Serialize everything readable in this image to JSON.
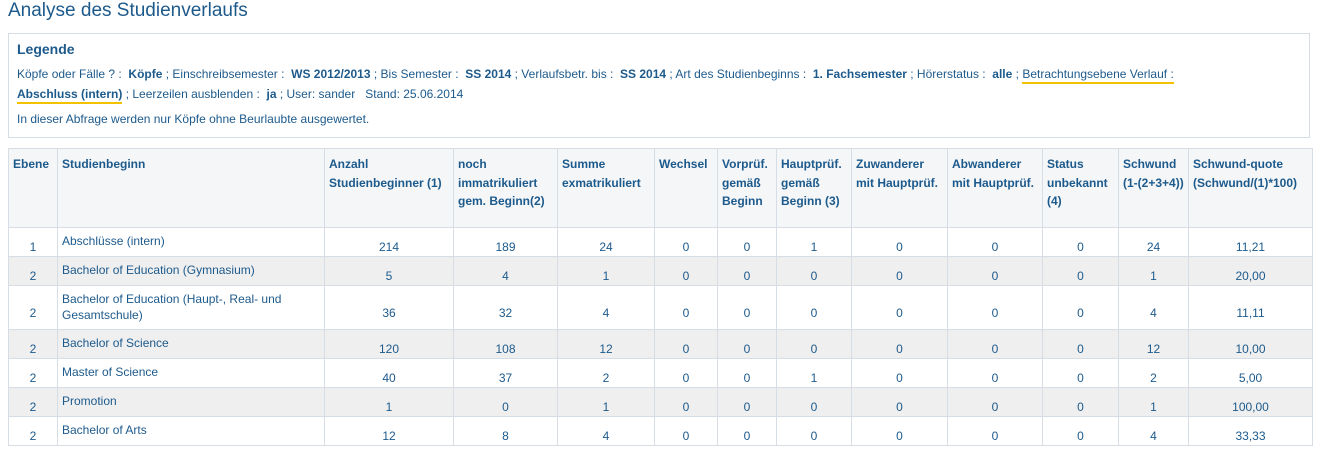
{
  "page": {
    "title": "Analyse des Studienverlaufs"
  },
  "legend": {
    "title": "Legende",
    "line1": {
      "koepfe_label": "Köpfe oder Fälle ? :",
      "koepfe_value": "Köpfe",
      "sem_label": "; Einschreibsemester :",
      "sem_value": "WS 2012/2013",
      "bis_label": "; Bis Semester :",
      "bis_value": "SS 2014",
      "verl_label": "; Verlaufsbetr. bis :",
      "verl_value": "SS 2014",
      "art_label": "; Art des Studienbeginns :",
      "art_value": "1. Fachsemester",
      "hoerer_label": "; Hörerstatus :",
      "hoerer_value": "alle",
      "sep": ";",
      "betr_label": "Betrachtungsebene Verlauf :"
    },
    "line2": {
      "betr_value": "Abschluss (intern)",
      "leer_label": "; Leerzeilen ausblenden :",
      "leer_value": "ja",
      "user_text": "; User: sander",
      "stand_text": "Stand: 25.06.2014"
    },
    "note": "In dieser Abfrage werden nur Köpfe ohne Beurlaubte ausgewertet."
  },
  "table": {
    "headers": [
      "Ebene",
      "Studienbeginn",
      "Anzahl Studienbeginner (1)",
      "noch immatrikuliert gem. Beginn(2)",
      "Summe exmatrikuliert",
      "Wechsel",
      "Vorprüf. gemäß Beginn",
      "Hauptprüf. gemäß Beginn (3)",
      "Zuwanderer mit Hauptprüf.",
      "Abwanderer mit Hauptprüf.",
      "Status unbekannt (4)",
      "Schwund (1-(2+3+4))",
      "Schwund-quote (Schwund/(1)*100)"
    ],
    "rows": [
      [
        "1",
        "Abschlüsse (intern)",
        "214",
        "189",
        "24",
        "0",
        "0",
        "1",
        "0",
        "0",
        "0",
        "24",
        "11,21"
      ],
      [
        "2",
        "Bachelor of Education (Gymnasium)",
        "5",
        "4",
        "1",
        "0",
        "0",
        "0",
        "0",
        "0",
        "0",
        "1",
        "20,00"
      ],
      [
        "2",
        "Bachelor of Education (Haupt-, Real- und Gesamtschule)",
        "36",
        "32",
        "4",
        "0",
        "0",
        "0",
        "0",
        "0",
        "0",
        "4",
        "11,11"
      ],
      [
        "2",
        "Bachelor of Science",
        "120",
        "108",
        "12",
        "0",
        "0",
        "0",
        "0",
        "0",
        "0",
        "12",
        "10,00"
      ],
      [
        "2",
        "Master of Science",
        "40",
        "37",
        "2",
        "0",
        "0",
        "1",
        "0",
        "0",
        "0",
        "2",
        "5,00"
      ],
      [
        "2",
        "Promotion",
        "1",
        "0",
        "1",
        "0",
        "0",
        "0",
        "0",
        "0",
        "0",
        "1",
        "100,00"
      ],
      [
        "2",
        "Bachelor of Arts",
        "12",
        "8",
        "4",
        "0",
        "0",
        "0",
        "0",
        "0",
        "0",
        "4",
        "33,33"
      ]
    ]
  },
  "colors": {
    "text": "#1d5a8c",
    "highlight": "#f2c200",
    "row_alt": "#efefef",
    "border": "#d6dde4"
  }
}
